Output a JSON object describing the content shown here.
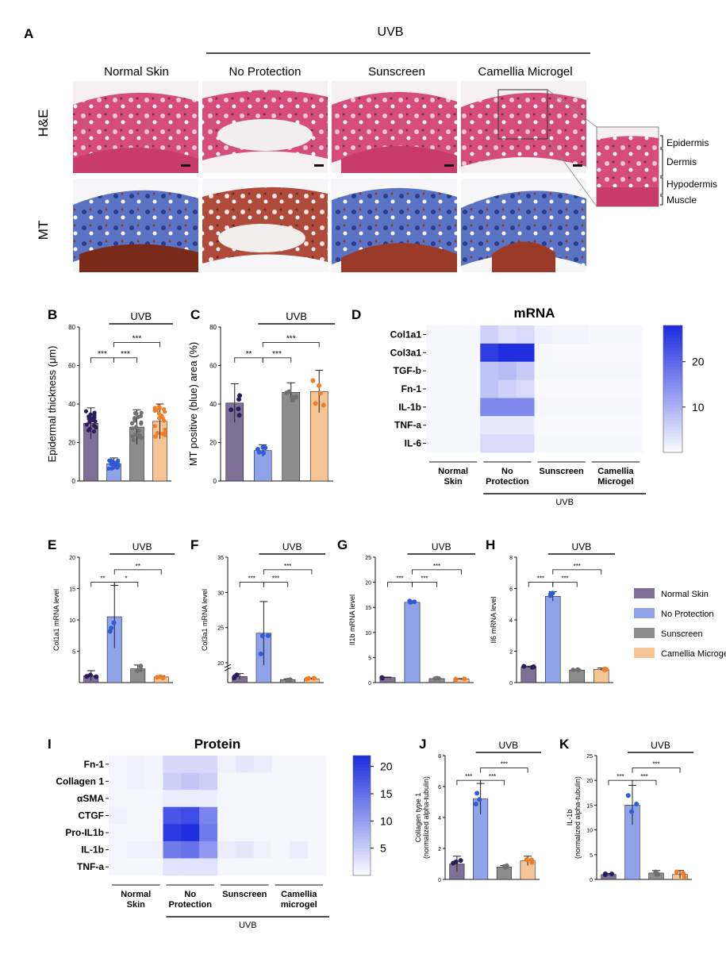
{
  "panel_letters": [
    "A",
    "B",
    "C",
    "D",
    "E",
    "F",
    "G",
    "H",
    "I",
    "J",
    "K"
  ],
  "colors": {
    "normal": "#7e6f97",
    "noprot": "#8fa3ea",
    "sunscreen": "#8d8d8d",
    "camellia": "#f5c596",
    "normal_dot": "#2b1c5c",
    "noprot_dot": "#2f5ad8",
    "sunscreen_dot": "#707070",
    "camellia_dot": "#f07d26",
    "heat_max": "#1f2fe0"
  },
  "panelA": {
    "uvb": "UVB",
    "columns": [
      "Normal Skin",
      "No Protection",
      "Sunscreen",
      "Camellia Microgel"
    ],
    "rows": [
      "H&E",
      "MT"
    ],
    "zoom_labels": [
      "Epidermis",
      "Dermis",
      "Hypodermis",
      "Muscle"
    ]
  },
  "legend": {
    "items": [
      "Normal Skin",
      "No Protection",
      "Sunscreen",
      "Camellia Microge"
    ]
  },
  "chart_data": [
    {
      "id": "B",
      "type": "bar",
      "uvb": "UVB",
      "ylabel": "Epidermal thickness (μm)",
      "ylim": [
        0,
        80
      ],
      "yticks": [
        "0",
        "20",
        "40",
        "60",
        "80"
      ],
      "categories": [
        "Normal Skin",
        "No Protection",
        "Sunscreen",
        "Camellia Microgel"
      ],
      "values": [
        30,
        9,
        28,
        31
      ],
      "sd": [
        8,
        3,
        9,
        9
      ],
      "sig": [
        {
          "pair": [
            0,
            1
          ],
          "label": "***"
        },
        {
          "pair": [
            1,
            2
          ],
          "label": "***"
        },
        {
          "pair": [
            1,
            3
          ],
          "label": "***"
        }
      ]
    },
    {
      "id": "C",
      "type": "bar",
      "uvb": "UVB",
      "ylabel": "MT positive (blue) area (%)",
      "ylim": [
        0,
        80
      ],
      "yticks": [
        "0",
        "20",
        "40",
        "60",
        "80"
      ],
      "categories": [
        "Normal Skin",
        "No Protection",
        "Sunscreen",
        "Camellia Microgel"
      ],
      "values": [
        40.5,
        15.8,
        46,
        46.5
      ],
      "sd": [
        10,
        3,
        5,
        11
      ],
      "sig": [
        {
          "pair": [
            0,
            1
          ],
          "label": "**"
        },
        {
          "pair": [
            1,
            2
          ],
          "label": "***"
        },
        {
          "pair": [
            1,
            3
          ],
          "label": "***"
        }
      ]
    },
    {
      "id": "D",
      "type": "heatmap",
      "title": "mRNA",
      "uvb": "UVB",
      "rows": [
        "Col1a1",
        "Col3a1",
        "TGF-b",
        "Fn-1",
        "IL-1b",
        "TNF-a",
        "IL-6"
      ],
      "groups": [
        "Normal Skin",
        "No Protection",
        "Sunscreen",
        "Camellia Microgel"
      ],
      "colorbar_ticks": [
        "20",
        "10"
      ],
      "colorbar_tick_values": [
        20,
        10
      ],
      "vmin": 0,
      "vmax": 28,
      "values": [
        [
          1.2,
          1.0,
          1.1,
          6,
          4,
          5,
          2,
          1.5,
          1.5,
          1,
          1,
          1
        ],
        [
          1,
          1,
          1,
          26,
          30,
          28,
          1,
          0.8,
          0.8,
          0.8,
          0.8,
          0.8
        ],
        [
          1,
          1,
          1,
          8,
          9,
          7,
          1,
          1,
          1,
          1,
          1,
          1
        ],
        [
          1,
          1,
          1,
          8,
          6,
          5,
          0.8,
          0.8,
          0.8,
          0.8,
          0.8,
          0.8
        ],
        [
          1,
          1,
          1,
          16,
          16,
          16,
          1,
          1,
          1,
          1,
          1,
          1
        ],
        [
          1,
          1,
          1,
          3,
          3,
          3,
          0.8,
          0.8,
          0.8,
          0.8,
          0.8,
          0.8
        ],
        [
          1,
          1,
          1,
          5,
          5,
          5,
          1,
          1,
          1,
          1,
          1,
          1
        ]
      ]
    },
    {
      "id": "E",
      "type": "bar",
      "uvb": "UVB",
      "ylabel": "Col1a1 mRNA level",
      "ylim": [
        0,
        20
      ],
      "yticks": [
        "5",
        "10",
        "15",
        "20"
      ],
      "categories": [
        "Normal Skin",
        "No Protection",
        "Sunscreen",
        "Camellia Microgel"
      ],
      "values": [
        1.1,
        10.5,
        2.2,
        0.9
      ],
      "sd": [
        0.8,
        5,
        0.6,
        0.2
      ],
      "sig": [
        {
          "pair": [
            0,
            1
          ],
          "label": "**"
        },
        {
          "pair": [
            1,
            2
          ],
          "label": "*"
        },
        {
          "pair": [
            1,
            3
          ],
          "label": "**"
        }
      ]
    },
    {
      "id": "F",
      "type": "bar",
      "uvb": "UVB",
      "ylabel": "Col3a1 mRNA level",
      "yticks": [
        "20",
        "25",
        "30",
        "35"
      ],
      "categories": [
        "Normal Skin",
        "No Protection",
        "Sunscreen",
        "Camellia Microgel"
      ],
      "values": [
        0.8,
        24.2,
        0.4,
        0.5
      ],
      "sd": [
        0.4,
        4.5,
        0.1,
        0.1
      ],
      "sig": [
        {
          "pair": [
            0,
            1
          ],
          "label": "***"
        },
        {
          "pair": [
            1,
            2
          ],
          "label": "***"
        },
        {
          "pair": [
            1,
            3
          ],
          "label": "***"
        }
      ]
    },
    {
      "id": "G",
      "type": "bar",
      "uvb": "UVB",
      "ylabel": "Il1b mRNA level",
      "ylim": [
        0,
        25
      ],
      "yticks": [
        "0",
        "5",
        "10",
        "15",
        "20",
        "25"
      ],
      "categories": [
        "Normal Skin",
        "No Protection",
        "Sunscreen",
        "Camellia Microgel"
      ],
      "values": [
        1,
        16,
        0.8,
        0.7
      ],
      "sd": [
        0.1,
        0.3,
        0.1,
        0.1
      ],
      "sig": [
        {
          "pair": [
            0,
            1
          ],
          "label": "***"
        },
        {
          "pair": [
            1,
            2
          ],
          "label": "***"
        },
        {
          "pair": [
            1,
            3
          ],
          "label": "***"
        }
      ]
    },
    {
      "id": "H",
      "type": "bar",
      "uvb": "UVB",
      "ylabel": "Il6 mRNA level",
      "ylim": [
        0,
        8
      ],
      "yticks": [
        "0",
        "2",
        "4",
        "6",
        "8"
      ],
      "categories": [
        "Normal Skin",
        "No Protection",
        "Sunscreen",
        "Camellia Microgel"
      ],
      "values": [
        1,
        5.5,
        0.8,
        0.85
      ],
      "sd": [
        0.05,
        0.3,
        0.05,
        0.08
      ],
      "sig": [
        {
          "pair": [
            0,
            1
          ],
          "label": "***"
        },
        {
          "pair": [
            1,
            2
          ],
          "label": "***"
        },
        {
          "pair": [
            1,
            3
          ],
          "label": "***"
        }
      ]
    },
    {
      "id": "I",
      "type": "heatmap",
      "title": "Protein",
      "uvb": "UVB",
      "rows": [
        "Fn-1",
        "Collagen 1",
        "αSMA",
        "CTGF",
        "Pro-IL1b",
        "IL-1b",
        "TNF-a"
      ],
      "groups": [
        "Normal Skin",
        "No Protection",
        "Sunscreen",
        "Camellia microgel"
      ],
      "colorbar_ticks": [
        "20",
        "15",
        "10",
        "5"
      ],
      "colorbar_tick_values": [
        20,
        15,
        10,
        5
      ],
      "vmin": 0,
      "vmax": 22,
      "values": [
        [
          1,
          1.5,
          1.2,
          4,
          4,
          4,
          1.5,
          2.5,
          2,
          1,
          1,
          1
        ],
        [
          1,
          1.5,
          1.2,
          5,
          6,
          5,
          1,
          1,
          1,
          1,
          1,
          1
        ],
        [
          1,
          1,
          1,
          2,
          2,
          2,
          1,
          1,
          1,
          1,
          1,
          1
        ],
        [
          1.5,
          1,
          1,
          18,
          19,
          13,
          1,
          1,
          1,
          1,
          1,
          1
        ],
        [
          1,
          1,
          1,
          21,
          23,
          14,
          1,
          1,
          1,
          1,
          1,
          1
        ],
        [
          1,
          1.5,
          1.5,
          14,
          15,
          11,
          2,
          2.5,
          1.5,
          1,
          2,
          1
        ],
        [
          1,
          1,
          1,
          3,
          3,
          3,
          1,
          1,
          1,
          1,
          1,
          1
        ]
      ]
    },
    {
      "id": "J",
      "type": "bar",
      "uvb": "UVB",
      "ylabel": "Collagen type 1 (normalized alpha-tubulin)",
      "ylim": [
        0,
        8
      ],
      "yticks": [
        "0",
        "2",
        "4",
        "6",
        "8"
      ],
      "categories": [
        "Normal Skin",
        "No Protection",
        "Sunscreen",
        "Camellia Microgel"
      ],
      "values": [
        1,
        5.2,
        0.8,
        1.2
      ],
      "sd": [
        0.5,
        1.0,
        0.1,
        0.3
      ],
      "sig": [
        {
          "pair": [
            0,
            1
          ],
          "label": "***"
        },
        {
          "pair": [
            1,
            2
          ],
          "label": "***"
        },
        {
          "pair": [
            1,
            3
          ],
          "label": "***"
        }
      ]
    },
    {
      "id": "K",
      "type": "bar",
      "uvb": "UVB",
      "ylabel": "IL-1b (normalized alpha-tubulin)",
      "ylim": [
        0,
        25
      ],
      "yticks": [
        "0",
        "5",
        "10",
        "15",
        "20",
        "25"
      ],
      "categories": [
        "Normal Skin",
        "No Protection",
        "Sunscreen",
        "Camellia Microgel"
      ],
      "values": [
        1,
        15,
        1.3,
        1
      ],
      "sd": [
        0.2,
        4,
        0.5,
        0.8
      ],
      "sig": [
        {
          "pair": [
            0,
            1
          ],
          "label": "***"
        },
        {
          "pair": [
            1,
            2
          ],
          "label": "***"
        },
        {
          "pair": [
            1,
            3
          ],
          "label": "***"
        }
      ]
    }
  ]
}
